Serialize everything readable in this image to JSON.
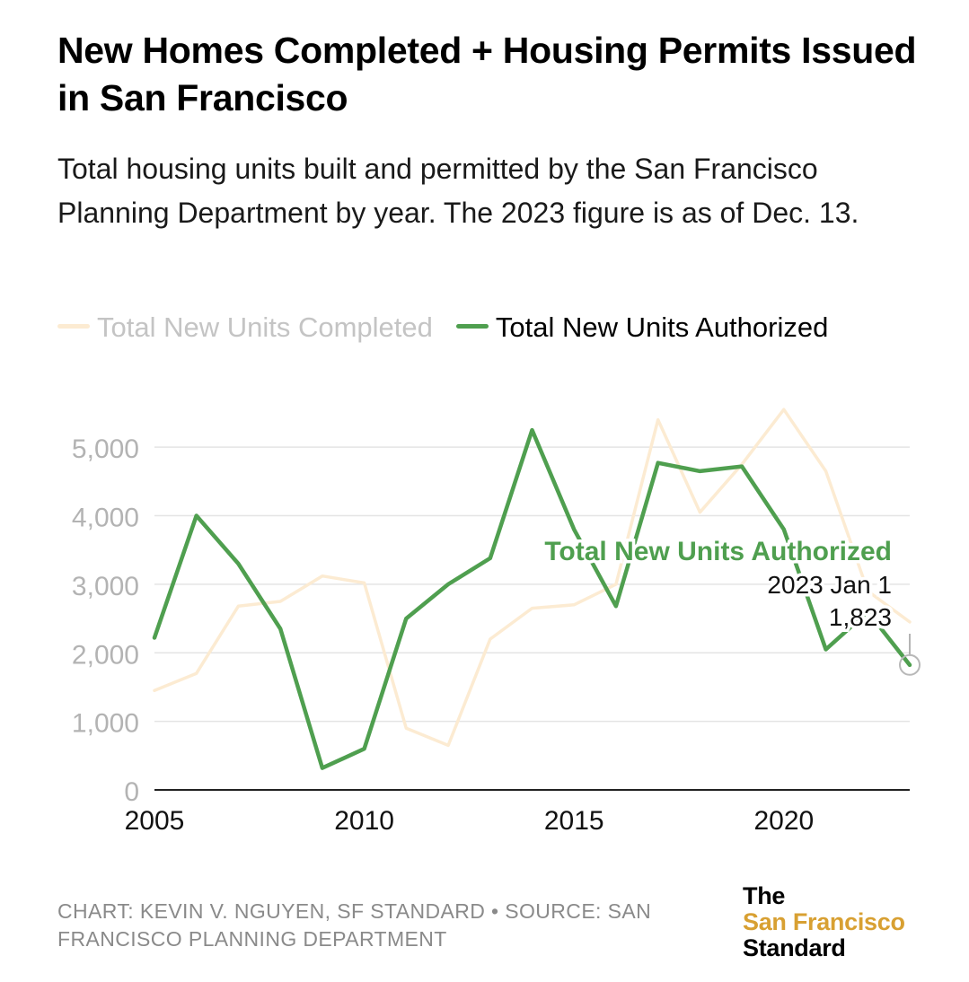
{
  "title": "New Homes Completed + Housing Permits Issued in San Francisco",
  "subtitle": "Total housing units built and permitted by the San Francisco Planning Department by year. The 2023 figure is as of Dec. 13.",
  "chart_data": {
    "type": "line",
    "title": "New Homes Completed + Housing Permits Issued in San Francisco",
    "xlabel": "",
    "ylabel": "",
    "xlim": [
      2005,
      2023
    ],
    "ylim": [
      0,
      5500
    ],
    "yticks": [
      0,
      1000,
      2000,
      3000,
      4000,
      5000
    ],
    "ytick_labels": [
      "0",
      "1,000",
      "2,000",
      "3,000",
      "4,000",
      "5,000"
    ],
    "xticks": [
      2005,
      2010,
      2015,
      2020
    ],
    "xtick_labels": [
      "2005",
      "2010",
      "2015",
      "2020"
    ],
    "grid": true,
    "legend_position": "top-left",
    "x": [
      2005,
      2006,
      2007,
      2008,
      2009,
      2010,
      2011,
      2012,
      2013,
      2014,
      2015,
      2016,
      2017,
      2018,
      2019,
      2020,
      2021,
      2022,
      2023
    ],
    "series": [
      {
        "name": "Total New Units Completed",
        "color": "#fcebd2",
        "highlighted": false,
        "values": [
          1450,
          1700,
          2680,
          2750,
          3120,
          3020,
          900,
          650,
          2200,
          2650,
          2700,
          3000,
          5400,
          4050,
          4750,
          5550,
          4650,
          2900,
          2450
        ]
      },
      {
        "name": "Total New Units Authorized",
        "color": "#4f9f4f",
        "highlighted": true,
        "values": [
          2220,
          4000,
          3300,
          2350,
          320,
          600,
          2500,
          3000,
          3380,
          5250,
          3800,
          2680,
          4770,
          4650,
          4720,
          3800,
          2050,
          2600,
          1823
        ]
      }
    ],
    "annotations": {
      "series_label": "Total New Units Authorized",
      "tooltip_date": "2023 Jan 1",
      "tooltip_value": "1,823",
      "highlight_x": 2023,
      "highlight_y": 1823
    }
  },
  "legend": {
    "items": [
      {
        "label": "Total New Units Completed",
        "color": "#fcebd2",
        "faded": true
      },
      {
        "label": "Total New Units Authorized",
        "color": "#4f9f4f",
        "faded": false
      }
    ]
  },
  "footer": {
    "credit": "CHART: KEVIN V. NGUYEN, SF STANDARD • SOURCE: SAN FRANCISCO PLANNING DEPARTMENT"
  },
  "logo": {
    "line1": "The",
    "line2": "San Francisco",
    "line3": "Standard",
    "accent_color": "#d8a032"
  },
  "colors": {
    "grid": "#e4e4e4",
    "axis": "#222222",
    "tick_label_y": "#b3b3b3",
    "tick_label_x": "#111111",
    "footer": "#8a8a8a"
  }
}
